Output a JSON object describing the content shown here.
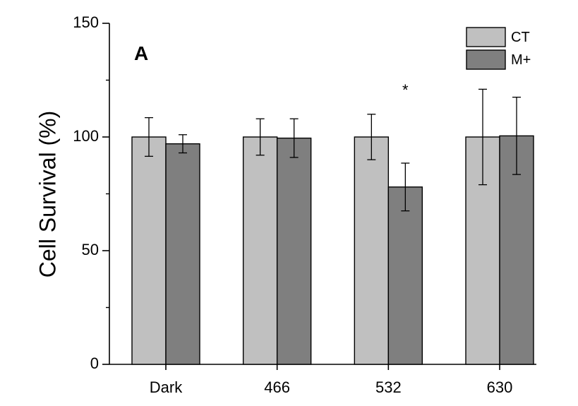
{
  "chart_data": {
    "type": "bar",
    "panel_label": "A",
    "ylabel": "Cell Survival (%)",
    "xlabel": "",
    "ylim": [
      0,
      150
    ],
    "yticks": [
      0,
      50,
      100,
      150
    ],
    "categories": [
      "Dark",
      "466",
      "532",
      "630"
    ],
    "series": [
      {
        "name": "CT",
        "color": "#c0c0c0",
        "values": [
          100,
          100,
          100,
          100
        ],
        "errors": [
          8.5,
          8,
          10,
          21
        ]
      },
      {
        "name": "M+",
        "color": "#7f7f7f",
        "values": [
          97,
          99.5,
          78,
          100.5
        ],
        "errors": [
          4,
          8.5,
          10.5,
          17
        ]
      }
    ],
    "annotations": [
      {
        "text": "*",
        "category": "532",
        "series": "M+",
        "y": 122
      }
    ],
    "legend_position": "top-right",
    "grid": false
  }
}
